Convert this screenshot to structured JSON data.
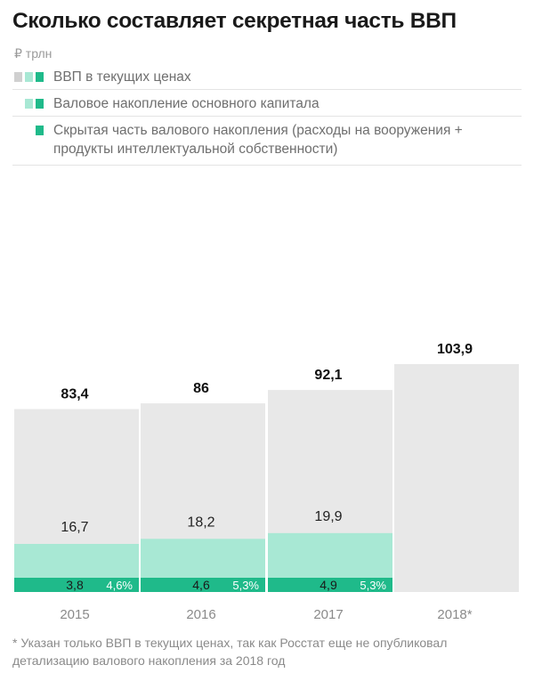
{
  "title": "Сколько составляет секретная часть ВВП",
  "unit": "₽ трлн",
  "legend": [
    {
      "label": "ВВП в текущих ценах",
      "swatches": [
        "#d0d0d0",
        "#a8e8d4",
        "#1fba8a"
      ]
    },
    {
      "label": "Валовое накопление основного капитала",
      "swatches": [
        "#a8e8d4",
        "#1fba8a"
      ]
    },
    {
      "label": "Скрытая часть валового накопления (расходы на вооружения + продукты интеллектуальной собственности)",
      "swatches": [
        "#1fba8a"
      ]
    }
  ],
  "colors": {
    "gdp": "#e8e8e8",
    "accumulation": "#a8e8d4",
    "hidden": "#1fba8a"
  },
  "chart_data": {
    "type": "bar",
    "categories": [
      "2015",
      "2016",
      "2017",
      "2018*"
    ],
    "series": [
      {
        "name": "ВВП в текущих ценах",
        "values": [
          83.4,
          86,
          92.1,
          103.9
        ],
        "labels": [
          "83,4",
          "86",
          "92,1",
          "103,9"
        ]
      },
      {
        "name": "Валовое накопление основного капитала",
        "values": [
          16.7,
          18.2,
          19.9,
          null
        ],
        "labels": [
          "16,7",
          "18,2",
          "19,9",
          ""
        ]
      },
      {
        "name": "Скрытая часть валового накопления",
        "values": [
          3.8,
          4.6,
          4.9,
          null
        ],
        "labels": [
          "3,8",
          "4,6",
          "4,9",
          ""
        ]
      }
    ],
    "hidden_share_of_gdp": [
      "4,6%",
      "5,3%",
      "5,3%",
      ""
    ],
    "ylim": [
      0,
      103.9
    ]
  },
  "footnote": "* Указан только ВВП в текущих ценах, так как Росстат еще не опубликовал детализацию валового накопления за 2018 год"
}
